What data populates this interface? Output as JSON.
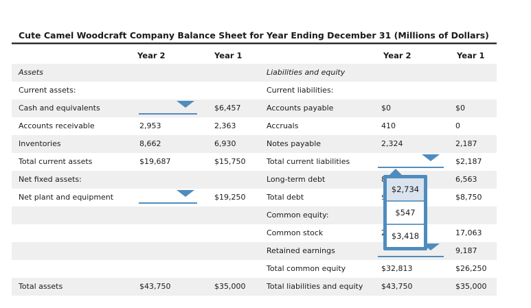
{
  "title": "Cute Camel Woodcraft Company Balance Sheet for Year Ending December 31 (Millions of Dollars)",
  "columns": {
    "left_year2": "Year 2",
    "left_year1": "Year 1",
    "right_year2": "Year 2",
    "right_year1": "Year 1"
  },
  "colors": {
    "accent": "#4e8cbe",
    "row_shade": "#efefef",
    "popup_selected_bg": "#dae3ee"
  },
  "rows": [
    {
      "left": {
        "label": "Assets"
      },
      "right": {
        "label": "Liabilities and equity"
      }
    },
    {
      "left": {
        "label": "Current assets:"
      },
      "right": {
        "label": "Current liabilities:"
      }
    },
    {
      "left": {
        "label": "Cash and equivalents",
        "year1": "$6,457"
      },
      "right": {
        "label": "Accounts payable",
        "year2": "$0",
        "year1": "$0"
      }
    },
    {
      "left": {
        "label": "Accounts receivable",
        "year2": "2,953",
        "year1": "2,363"
      },
      "right": {
        "label": "Accruals",
        "year2": "410",
        "year1": "0"
      }
    },
    {
      "left": {
        "label": "Inventories",
        "year2": "8,662",
        "year1": "6,930"
      },
      "right": {
        "label": "Notes payable",
        "year2": "2,324",
        "year1": "2,187"
      }
    },
    {
      "left": {
        "label": "Total current assets",
        "year2": "$19,687",
        "year1": "$15,750"
      },
      "right": {
        "label": "Total current liabilities",
        "year1": "$2,187"
      }
    },
    {
      "left": {
        "label": "Net fixed assets:"
      },
      "right": {
        "label": "Long-term debt",
        "year2": "8",
        "year1": "6,563"
      }
    },
    {
      "left": {
        "label": "Net plant and equipment",
        "year1": "$19,250"
      },
      "right": {
        "label": "Total debt",
        "year2": "$",
        "year1": "$8,750"
      }
    },
    {
      "left": {
        "label": ""
      },
      "right": {
        "label": "Common equity:"
      }
    },
    {
      "left": {
        "label": ""
      },
      "right": {
        "label": "Common stock",
        "year2": "2",
        "year1": "17,063"
      }
    },
    {
      "left": {
        "label": ""
      },
      "right": {
        "label": "Retained earnings",
        "year1": "9,187"
      }
    },
    {
      "left": {
        "label": ""
      },
      "right": {
        "label": "Total common equity",
        "year2": "$32,813",
        "year1": "$26,250"
      }
    },
    {
      "left": {
        "label": "Total assets",
        "year2": "$43,750",
        "year1": "$35,000"
      },
      "right": {
        "label": "Total liabilities and equity",
        "year2": "$43,750",
        "year1": "$35,000"
      }
    }
  ],
  "dropdowns": {
    "cash_and_equivalents_year2": "",
    "net_plant_and_equipment_year2": "",
    "total_current_liabilities_year2": "",
    "retained_earnings_year2": ""
  },
  "popup": {
    "anchor": "total-current-liabilities-year2",
    "options": [
      "$2,734",
      "$547",
      "$3,418"
    ],
    "selected": "$2,734"
  }
}
